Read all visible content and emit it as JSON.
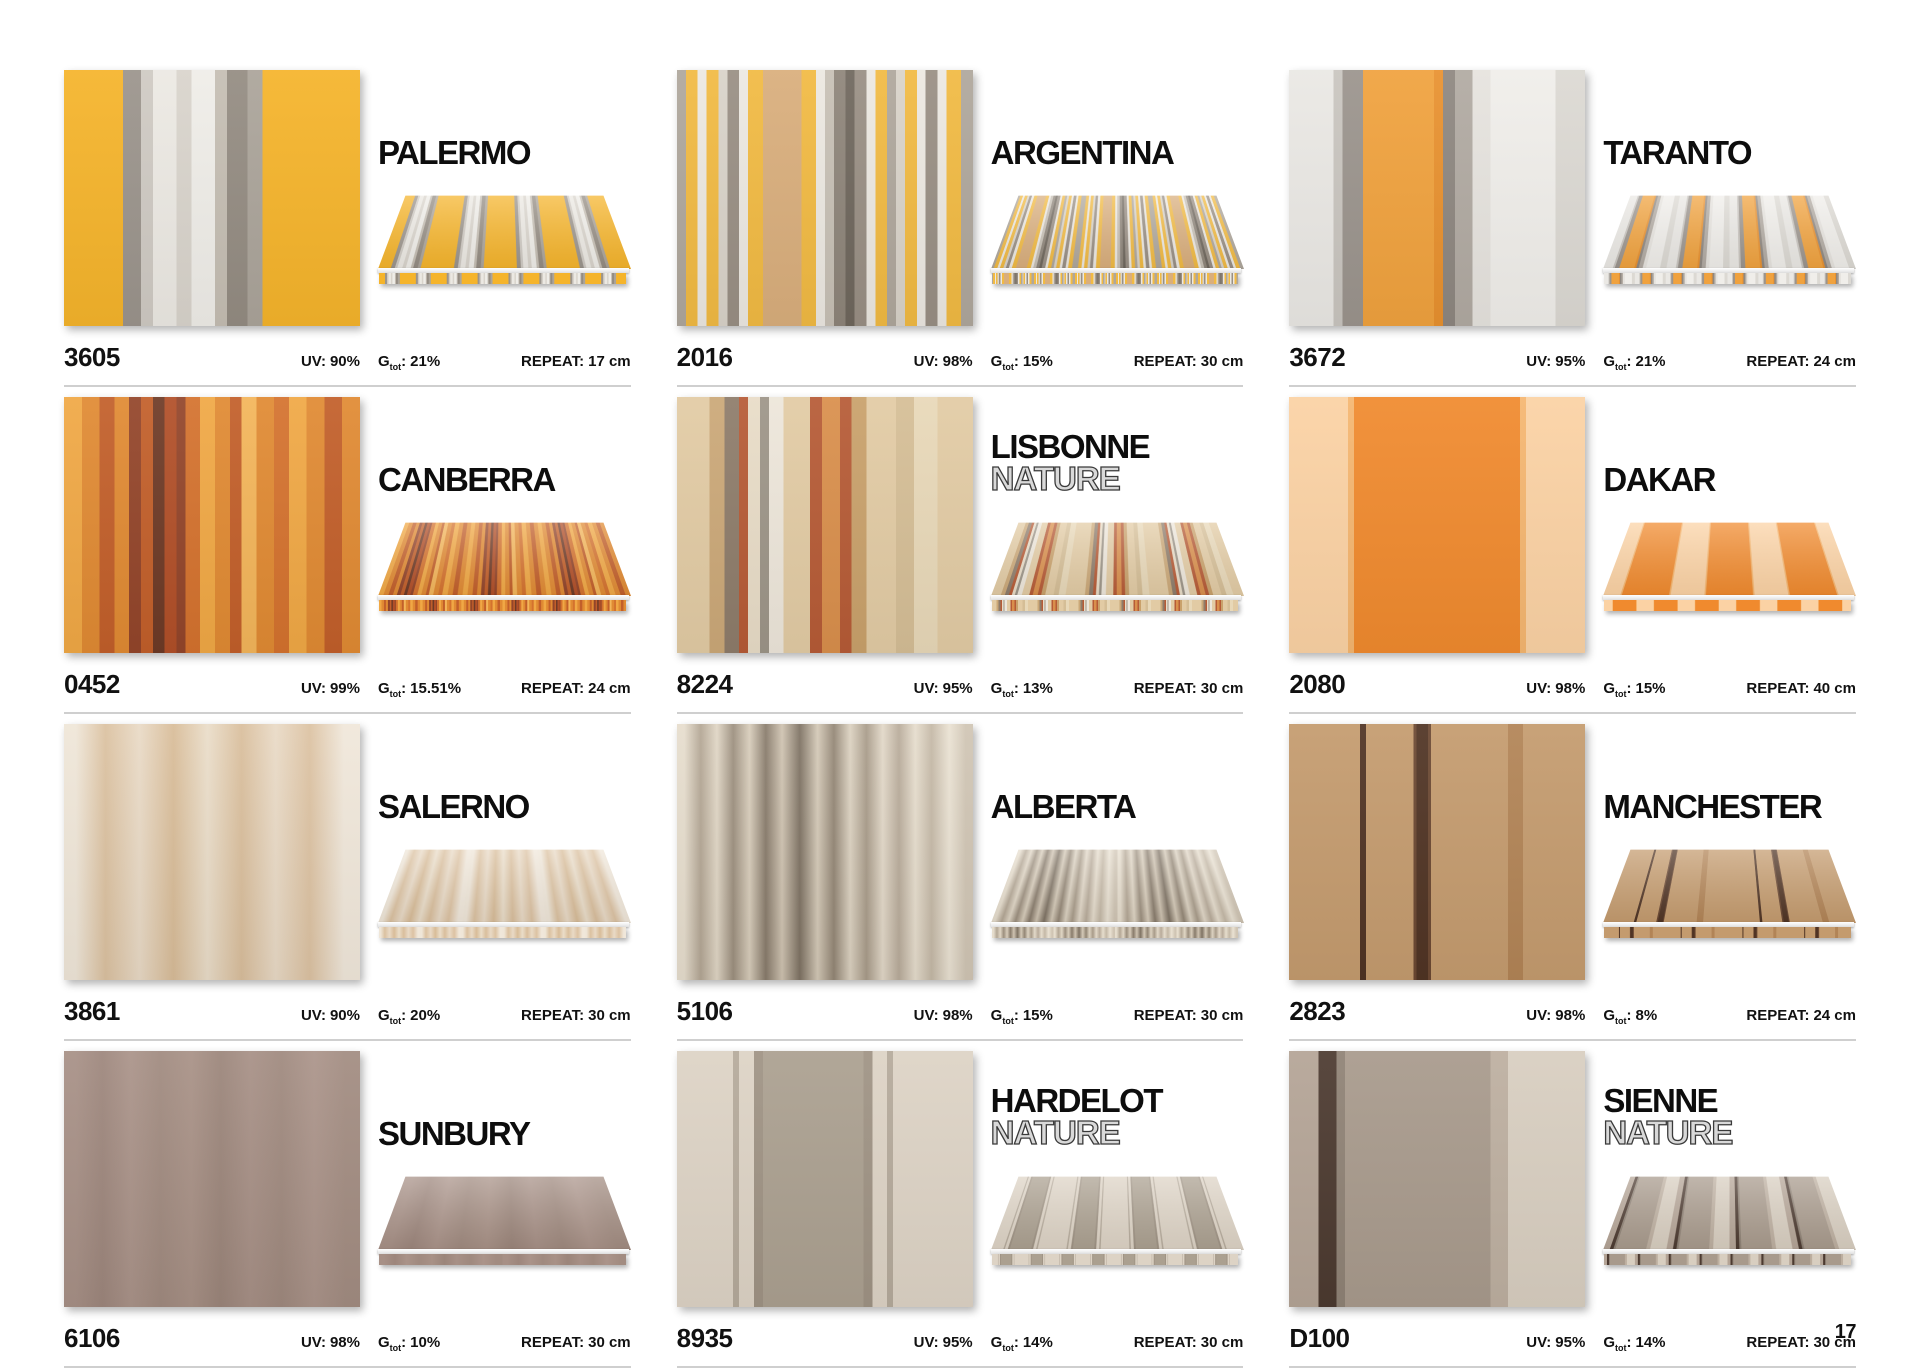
{
  "page_number": "17",
  "labels": {
    "uv": "UV:",
    "g": "G",
    "g_sub": "tot",
    "g_colon": ":",
    "repeat": "REPEAT:"
  },
  "products": [
    {
      "name": "PALERMO",
      "subname": "",
      "code": "3605",
      "uv": "90%",
      "g": "21%",
      "repeat": "17 cm",
      "awning_repeat": 4,
      "swatch": {
        "type": "hard",
        "stripes": [
          [
            "#F5B42B",
            20
          ],
          [
            "#9B948C",
            6
          ],
          [
            "#CFCAC3",
            4
          ],
          [
            "#ECE9E3",
            8
          ],
          [
            "#D9D4CC",
            5
          ],
          [
            "#EFEDE8",
            8
          ],
          [
            "#C5BEB3",
            4
          ],
          [
            "#948C82",
            7
          ],
          [
            "#ABA49A",
            5
          ],
          [
            "#F5B42B",
            33
          ]
        ]
      }
    },
    {
      "name": "ARGENTINA",
      "subname": "",
      "code": "2016",
      "uv": "98%",
      "g": "15%",
      "repeat": "30 cm",
      "awning_repeat": 3,
      "swatch": {
        "type": "hard",
        "stripes": [
          [
            "#AFA79C",
            3
          ],
          [
            "#F1BA43",
            4
          ],
          [
            "#ECE8E1",
            3
          ],
          [
            "#F1BA43",
            4
          ],
          [
            "#D9D3C9",
            3
          ],
          [
            "#998F84",
            4
          ],
          [
            "#ECE8E1",
            3
          ],
          [
            "#F1BA43",
            5
          ],
          [
            "#D9AE7C",
            13
          ],
          [
            "#F1BA43",
            5
          ],
          [
            "#ECE8E1",
            3
          ],
          [
            "#C7C0B5",
            3
          ],
          [
            "#8E857A",
            4
          ],
          [
            "#6F675D",
            3
          ],
          [
            "#998F84",
            4
          ],
          [
            "#ECE8E1",
            3
          ],
          [
            "#F1BA43",
            4
          ],
          [
            "#AFA79C",
            3
          ],
          [
            "#D9D3C9",
            3
          ],
          [
            "#F1BA43",
            4
          ],
          [
            "#ECE8E1",
            3
          ],
          [
            "#998F84",
            4
          ],
          [
            "#ECE8E1",
            3
          ],
          [
            "#F1BA43",
            5
          ],
          [
            "#AFA79C",
            4
          ]
        ]
      }
    },
    {
      "name": "TARANTO",
      "subname": "",
      "code": "3672",
      "uv": "95%",
      "g": "21%",
      "repeat": "24 cm",
      "awning_repeat": 4,
      "swatch": {
        "type": "hard",
        "stripes": [
          [
            "#EAE8E4",
            15
          ],
          [
            "#C9C5BF",
            3
          ],
          [
            "#9B948D",
            7
          ],
          [
            "#F0A23E",
            24
          ],
          [
            "#E8912F",
            3
          ],
          [
            "#8E8780",
            4
          ],
          [
            "#B1AAA2",
            6
          ],
          [
            "#E6E3DE",
            6
          ],
          [
            "#F0EEEA",
            22
          ],
          [
            "#DCD9D3",
            10
          ]
        ]
      }
    },
    {
      "name": "CANBERRA",
      "subname": "",
      "code": "0452",
      "uv": "99%",
      "g": "15.51%",
      "repeat": "24 cm",
      "awning_repeat": 3,
      "swatch": {
        "type": "hard",
        "stripes": [
          [
            "#F0A845",
            6
          ],
          [
            "#E08A33",
            6
          ],
          [
            "#C25F2A",
            5
          ],
          [
            "#E08A33",
            5
          ],
          [
            "#93452A",
            4
          ],
          [
            "#C25F2A",
            4
          ],
          [
            "#6E3A26",
            4
          ],
          [
            "#B14F28",
            4
          ],
          [
            "#93452A",
            3
          ],
          [
            "#D4722E",
            5
          ],
          [
            "#F0A845",
            5
          ],
          [
            "#E08A33",
            5
          ],
          [
            "#C25F2A",
            4
          ],
          [
            "#F3B55A",
            5
          ],
          [
            "#E08A33",
            6
          ],
          [
            "#D4722E",
            5
          ],
          [
            "#F0A845",
            6
          ],
          [
            "#E08A33",
            6
          ],
          [
            "#C25F2A",
            6
          ],
          [
            "#E08A33",
            6
          ]
        ]
      }
    },
    {
      "name": "LISBONNE",
      "subname": "NATURE",
      "code": "8224",
      "uv": "95%",
      "g": "13%",
      "repeat": "30 cm",
      "awning_repeat": 3,
      "swatch": {
        "type": "hard",
        "stripes": [
          [
            "#E2CBA4",
            11
          ],
          [
            "#CBA878",
            5
          ],
          [
            "#8E7C6A",
            5
          ],
          [
            "#B65B36",
            3
          ],
          [
            "#E8DCC7",
            4
          ],
          [
            "#9D9588",
            3
          ],
          [
            "#EDE6DA",
            5
          ],
          [
            "#E2CBA4",
            9
          ],
          [
            "#B65B36",
            4
          ],
          [
            "#D98F4C",
            6
          ],
          [
            "#B65B36",
            4
          ],
          [
            "#C9A16B",
            5
          ],
          [
            "#E2CBA4",
            10
          ],
          [
            "#D5BE96",
            6
          ],
          [
            "#E8D8B8",
            8
          ],
          [
            "#E2CBA4",
            12
          ]
        ]
      }
    },
    {
      "name": "DAKAR",
      "subname": "",
      "code": "2080",
      "uv": "98%",
      "g": "15%",
      "repeat": "40 cm",
      "awning_repeat": 3,
      "swatch": {
        "type": "hard",
        "stripes": [
          [
            "#FBD2A4",
            20
          ],
          [
            "#F5B670",
            2
          ],
          [
            "#F08A2E",
            56
          ],
          [
            "#F5B670",
            2
          ],
          [
            "#FBD2A4",
            20
          ]
        ]
      }
    },
    {
      "name": "SALERNO",
      "subname": "",
      "code": "3861",
      "uv": "90%",
      "g": "20%",
      "repeat": "30 cm",
      "awning_repeat": 3,
      "swatch": {
        "type": "soft",
        "stripes": [
          [
            "#EFE6D8",
            8
          ],
          [
            "#DBC1A0",
            12
          ],
          [
            "#E9DAC6",
            11
          ],
          [
            "#D8BC98",
            12
          ],
          [
            "#EADDC9",
            11
          ],
          [
            "#D9BE9C",
            12
          ],
          [
            "#E9DAC6",
            11
          ],
          [
            "#DCC2A2",
            12
          ],
          [
            "#F0E7DA",
            11
          ]
        ]
      }
    },
    {
      "name": "ALBERTA",
      "subname": "",
      "code": "5106",
      "uv": "98%",
      "g": "15%",
      "repeat": "30 cm",
      "awning_repeat": 2,
      "swatch": {
        "type": "soft",
        "stripes": [
          [
            "#E6DDCD",
            5
          ],
          [
            "#B3A694",
            6
          ],
          [
            "#E0D6C5",
            5
          ],
          [
            "#9C8F7E",
            6
          ],
          [
            "#D8CDBB",
            5
          ],
          [
            "#887B6B",
            6
          ],
          [
            "#CFC3B1",
            5
          ],
          [
            "#7E7263",
            7
          ],
          [
            "#D4C9B7",
            5
          ],
          [
            "#938675",
            6
          ],
          [
            "#DCD2C1",
            5
          ],
          [
            "#A89B89",
            6
          ],
          [
            "#E2D8C8",
            5
          ],
          [
            "#B8AB9A",
            6
          ],
          [
            "#E6DDCD",
            5
          ],
          [
            "#C4B8A6",
            6
          ],
          [
            "#EAE2D3",
            6
          ],
          [
            "#D0C5B4",
            5
          ]
        ]
      }
    },
    {
      "name": "MANCHESTER",
      "subname": "",
      "code": "2823",
      "uv": "98%",
      "g": "8%",
      "repeat": "24 cm",
      "awning_repeat": 2,
      "swatch": {
        "type": "hard",
        "stripes": [
          [
            "#C49B6E",
            24
          ],
          [
            "#503424",
            2
          ],
          [
            "#C49B6E",
            16
          ],
          [
            "#6B4832",
            1
          ],
          [
            "#503424",
            4
          ],
          [
            "#6B4832",
            1
          ],
          [
            "#C49B6E",
            26
          ],
          [
            "#B28456",
            5
          ],
          [
            "#C49B6E",
            21
          ]
        ]
      }
    },
    {
      "name": "SUNBURY",
      "subname": "",
      "code": "6106",
      "uv": "98%",
      "g": "10%",
      "repeat": "30 cm",
      "awning_repeat": 1,
      "swatch": {
        "type": "soft",
        "stripes": [
          [
            "#A79086",
            8
          ],
          [
            "#9D867C",
            10
          ],
          [
            "#AA9389",
            9
          ],
          [
            "#A08A7F",
            11
          ],
          [
            "#A89186",
            10
          ],
          [
            "#9B857A",
            10
          ],
          [
            "#A79086",
            10
          ],
          [
            "#9F897E",
            11
          ],
          [
            "#AB948A",
            11
          ],
          [
            "#A28C81",
            10
          ]
        ]
      }
    },
    {
      "name": "HARDELOT",
      "subname": "NATURE",
      "code": "8935",
      "uv": "95%",
      "g": "14%",
      "repeat": "30 cm",
      "awning_repeat": 4,
      "swatch": {
        "type": "hard",
        "stripes": [
          [
            "#DDD3C5",
            19
          ],
          [
            "#B5AA9B",
            2
          ],
          [
            "#DDD3C5",
            5
          ],
          [
            "#9F9384",
            3
          ],
          [
            "#ABA090",
            34
          ],
          [
            "#9F9384",
            3
          ],
          [
            "#DDD3C5",
            5
          ],
          [
            "#B5AA9B",
            2
          ],
          [
            "#DDD3C5",
            27
          ]
        ]
      }
    },
    {
      "name": "SIENNE",
      "subname": "NATURE",
      "code": "D100",
      "uv": "95%",
      "g": "14%",
      "repeat": "30 cm",
      "awning_repeat": 4,
      "swatch": {
        "type": "hard",
        "stripes": [
          [
            "#B4A496",
            10
          ],
          [
            "#4C3A30",
            6
          ],
          [
            "#8F8275",
            3
          ],
          [
            "#A89A8C",
            49
          ],
          [
            "#BDAFA0",
            6
          ],
          [
            "#D8CEC0",
            26
          ]
        ]
      }
    }
  ]
}
